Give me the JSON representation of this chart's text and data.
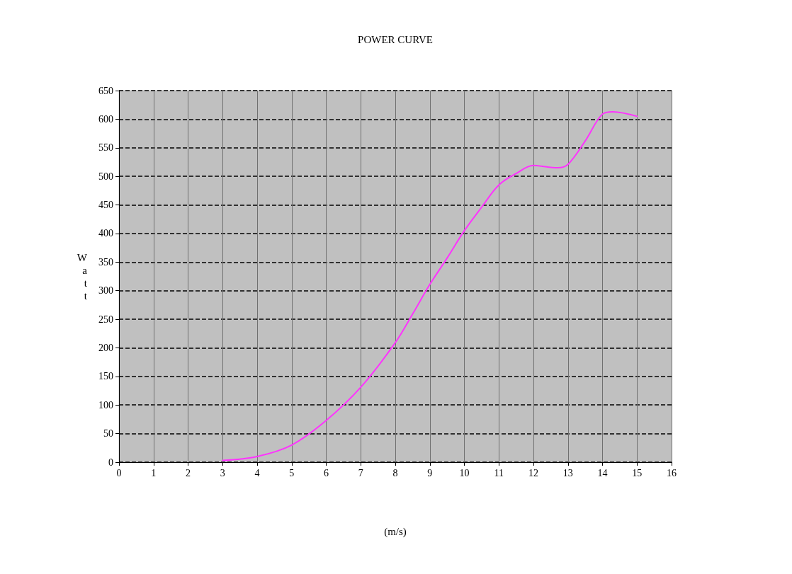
{
  "chart_data": {
    "type": "line",
    "title": "POWER CURVE",
    "xlabel": "(m/s)",
    "ylabel": "Watt",
    "x": [
      3,
      4,
      5,
      6,
      7,
      8,
      8.5,
      9,
      9.5,
      10,
      10.5,
      11,
      11.5,
      12,
      12.7,
      13,
      13.5,
      14,
      14.3,
      15
    ],
    "series": [
      {
        "color": "#ff33ff",
        "values": [
          3,
          10,
          30,
          73,
          131,
          209,
          259,
          311,
          357,
          405,
          446,
          485,
          505,
          519,
          515,
          521,
          562,
          609,
          613,
          605
        ]
      }
    ],
    "xlim": [
      0,
      16
    ],
    "xticks": [
      0,
      1,
      2,
      3,
      4,
      5,
      6,
      7,
      8,
      9,
      10,
      11,
      12,
      13,
      14,
      15,
      16
    ],
    "ylim": [
      0,
      650
    ],
    "yticks": [
      0,
      50,
      100,
      150,
      200,
      250,
      300,
      350,
      400,
      450,
      500,
      550,
      600,
      650
    ],
    "grid": true,
    "marker": "none",
    "line_style": "solid"
  }
}
